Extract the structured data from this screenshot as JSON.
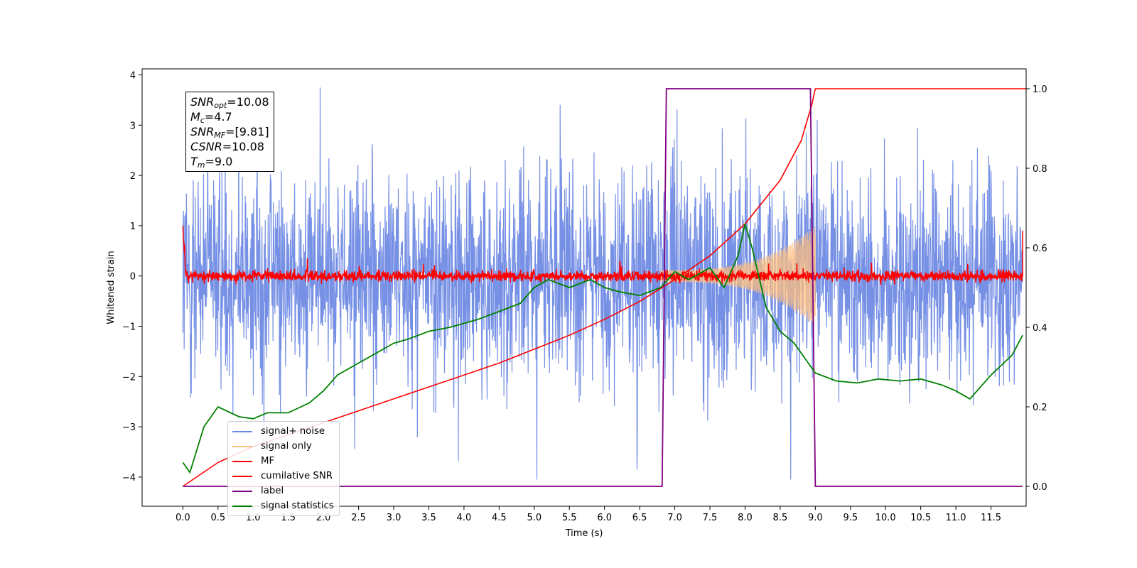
{
  "chart_data": {
    "type": "line",
    "xlabel": "Time (s)",
    "ylabel": "Whitened strain",
    "xlim": [
      -0.58,
      12.0
    ],
    "ylim": [
      -4.58,
      4.12
    ],
    "y2lim": [
      -0.05,
      1.05
    ],
    "x_ticks": [
      "0.0",
      "0.5",
      "1.0",
      "1.5",
      "2.0",
      "2.5",
      "3.0",
      "3.5",
      "4.0",
      "4.5",
      "5.0",
      "5.5",
      "6.0",
      "6.5",
      "7.0",
      "7.5",
      "8.0",
      "8.5",
      "9.0",
      "9.5",
      "10.0",
      "10.5",
      "11.0",
      "11.5"
    ],
    "y_ticks": [
      "4",
      "3",
      "2",
      "1",
      "0",
      "−1",
      "−2",
      "−3",
      "−4"
    ],
    "y2_ticks": [
      "1.0",
      "0.8",
      "0.6",
      "0.4",
      "0.2",
      "0.0"
    ],
    "grid": false,
    "legend_position": "lower-left",
    "annotation": {
      "snr_opt": "10.08",
      "mc": "4.7",
      "snr_mf": "[9.81]",
      "csnr": "10.08",
      "tm": "9.0"
    },
    "series": [
      {
        "name": "signal+ noise",
        "color": "#6a87e3",
        "axis": "left",
        "style": "noise band ≈ ±1.2 σ, extremes ~±3.7"
      },
      {
        "name": "signal only",
        "color": "#ffbf7f",
        "axis": "left",
        "chirp_start": 6.8,
        "chirp_end": 9.0,
        "peak_amplitude": 1.0
      },
      {
        "name": "MF",
        "color": "#ff0000",
        "axis": "left",
        "style": "noise ≈ ±0.15 around 0",
        "start_value": 1.0,
        "end_value": 0.9
      },
      {
        "name": "cumilative SNR",
        "color": "#ff0000",
        "axis": "right",
        "x": [
          0.0,
          0.5,
          1.0,
          1.5,
          2.0,
          2.5,
          3.0,
          3.5,
          4.0,
          4.5,
          5.0,
          5.5,
          6.0,
          6.5,
          7.0,
          7.5,
          8.0,
          8.5,
          8.8,
          8.95,
          9.0,
          12.0
        ],
        "values": [
          0.0,
          0.06,
          0.1,
          0.13,
          0.16,
          0.19,
          0.22,
          0.25,
          0.28,
          0.31,
          0.345,
          0.38,
          0.42,
          0.465,
          0.52,
          0.58,
          0.66,
          0.77,
          0.87,
          0.96,
          1.0,
          1.0
        ]
      },
      {
        "name": "label",
        "color": "#800080",
        "axis": "right",
        "x": [
          0.0,
          6.82,
          6.88,
          8.93,
          9.0,
          11.95
        ],
        "values": [
          0.0,
          0.0,
          1.0,
          1.0,
          0.0,
          0.0
        ]
      },
      {
        "name": "signal statistics",
        "color": "#008000",
        "axis": "right",
        "x": [
          0.0,
          0.1,
          0.3,
          0.5,
          0.8,
          1.0,
          1.2,
          1.5,
          1.8,
          2.0,
          2.2,
          2.5,
          2.8,
          3.0,
          3.2,
          3.5,
          3.8,
          4.0,
          4.2,
          4.5,
          4.8,
          5.0,
          5.2,
          5.5,
          5.8,
          6.0,
          6.2,
          6.5,
          6.8,
          7.0,
          7.2,
          7.5,
          7.7,
          7.9,
          8.0,
          8.1,
          8.3,
          8.5,
          8.7,
          8.9,
          9.0,
          9.3,
          9.6,
          9.9,
          10.2,
          10.5,
          10.8,
          11.0,
          11.2,
          11.5,
          11.8,
          11.95
        ],
        "values": [
          0.06,
          0.035,
          0.15,
          0.2,
          0.175,
          0.17,
          0.185,
          0.185,
          0.21,
          0.24,
          0.28,
          0.31,
          0.34,
          0.36,
          0.37,
          0.39,
          0.4,
          0.41,
          0.42,
          0.44,
          0.46,
          0.5,
          0.52,
          0.5,
          0.52,
          0.5,
          0.49,
          0.48,
          0.5,
          0.54,
          0.52,
          0.55,
          0.5,
          0.58,
          0.66,
          0.6,
          0.45,
          0.39,
          0.36,
          0.31,
          0.285,
          0.265,
          0.26,
          0.27,
          0.265,
          0.27,
          0.255,
          0.24,
          0.22,
          0.28,
          0.33,
          0.38
        ]
      }
    ]
  }
}
